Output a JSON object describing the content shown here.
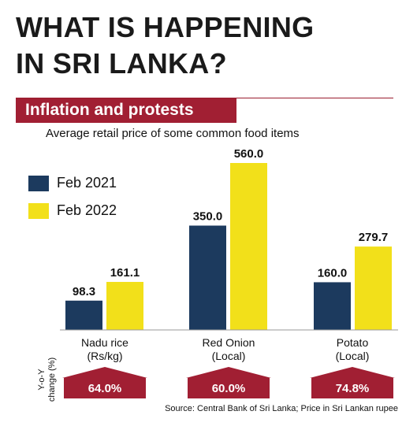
{
  "header": {
    "title": "WHAT IS HAPPENING\nIN SRI LANKA?",
    "banner": "Inflation and protests",
    "subtitle": "Average retail price of some common food items"
  },
  "colors": {
    "feb2021": "#1c3a5e",
    "feb2022": "#f2e01a",
    "accent": "#a11f33"
  },
  "chart_data": {
    "type": "bar",
    "title": "Inflation and protests",
    "subtitle": "Average retail price of some common food items",
    "categories": [
      "Nadu rice\n(Rs/kg)",
      "Red Onion\n(Local)",
      "Potato\n(Local)"
    ],
    "series": [
      {
        "name": "Feb 2021",
        "values": [
          98.3,
          350.0,
          160.0
        ]
      },
      {
        "name": "Feb 2022",
        "values": [
          161.1,
          560.0,
          279.7
        ]
      }
    ],
    "value_labels": [
      [
        "98.3",
        "350.0",
        "160.0"
      ],
      [
        "161.1",
        "560.0",
        "279.7"
      ]
    ],
    "yoy_label": "Y-o-Y\nchange (%)",
    "yoy_change": [
      "64.0%",
      "60.0%",
      "74.8%"
    ],
    "legend_position": "top-left",
    "grid": false,
    "ylim": [
      0,
      560
    ]
  },
  "footer": {
    "source": "Source: Central Bank of Sri Lanka; Price in Sri Lankan rupee"
  }
}
